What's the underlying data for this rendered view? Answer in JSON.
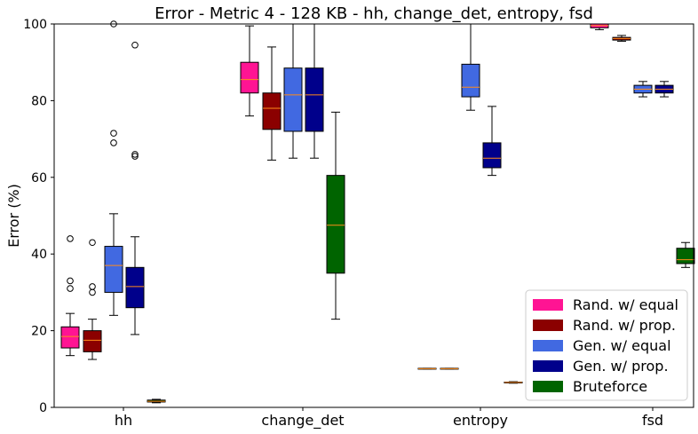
{
  "chart_data": {
    "type": "box",
    "title": "Error - Metric 4 - 128 KB - hh, change_det, entropy, fsd",
    "ylabel": "Error (%)",
    "xlabel": "",
    "ylim": [
      0,
      100
    ],
    "yticks": [
      0,
      20,
      40,
      60,
      80,
      100
    ],
    "categories": [
      "hh",
      "change_det",
      "entropy",
      "fsd"
    ],
    "legend_position": "lower-right",
    "grid": false,
    "median_color": "#ff8c1a",
    "series": [
      {
        "name": "Rand. w/ equal",
        "color": "#ff1493",
        "boxes": [
          {
            "whislo": 13.5,
            "q1": 15.5,
            "med": 18.5,
            "q3": 21,
            "whishi": 24.5,
            "fliers": [
              31,
              33,
              44
            ]
          },
          {
            "whislo": 76,
            "q1": 82,
            "med": 85.5,
            "q3": 90,
            "whishi": 99.5,
            "fliers": []
          },
          {
            "whislo": 10,
            "q1": 10,
            "med": 10.1,
            "q3": 10.2,
            "whishi": 10.2,
            "fliers": []
          },
          {
            "whislo": 98.5,
            "q1": 99,
            "med": 99.6,
            "q3": 100,
            "whishi": 100,
            "fliers": []
          }
        ]
      },
      {
        "name": "Rand. w/ prop.",
        "color": "#8b0000",
        "boxes": [
          {
            "whislo": 12.5,
            "q1": 14.5,
            "med": 17.5,
            "q3": 20,
            "whishi": 23,
            "fliers": [
              30,
              31.5,
              43
            ]
          },
          {
            "whislo": 64.5,
            "q1": 72.5,
            "med": 78,
            "q3": 82,
            "whishi": 94,
            "fliers": []
          },
          {
            "whislo": 10,
            "q1": 10,
            "med": 10.1,
            "q3": 10.2,
            "whishi": 10.2,
            "fliers": []
          },
          {
            "whislo": 95.5,
            "q1": 95.8,
            "med": 96.2,
            "q3": 96.5,
            "whishi": 97,
            "fliers": []
          }
        ]
      },
      {
        "name": "Gen. w/ equal",
        "color": "#4169e1",
        "boxes": [
          {
            "whislo": 24,
            "q1": 30,
            "med": 37,
            "q3": 42,
            "whishi": 50.5,
            "fliers": [
              69,
              71.5,
              100
            ]
          },
          {
            "whislo": 65,
            "q1": 72,
            "med": 81.5,
            "q3": 88.5,
            "whishi": 100,
            "fliers": []
          },
          {
            "whislo": 77.5,
            "q1": 81,
            "med": 83.5,
            "q3": 89.5,
            "whishi": 100,
            "fliers": []
          },
          {
            "whislo": 81,
            "q1": 82,
            "med": 83,
            "q3": 84,
            "whishi": 85,
            "fliers": []
          }
        ]
      },
      {
        "name": "Gen. w/ prop.",
        "color": "#00008b",
        "boxes": [
          {
            "whislo": 19,
            "q1": 26,
            "med": 31.5,
            "q3": 36.5,
            "whishi": 44.5,
            "fliers": [
              65.5,
              66,
              94.5
            ]
          },
          {
            "whislo": 65,
            "q1": 72,
            "med": 81.5,
            "q3": 88.5,
            "whishi": 100,
            "fliers": []
          },
          {
            "whislo": 60.5,
            "q1": 62.5,
            "med": 65,
            "q3": 69,
            "whishi": 78.5,
            "fliers": []
          },
          {
            "whislo": 81,
            "q1": 82,
            "med": 83,
            "q3": 84,
            "whishi": 85,
            "fliers": []
          }
        ]
      },
      {
        "name": "Bruteforce",
        "color": "#006400",
        "boxes": [
          {
            "whislo": 1.2,
            "q1": 1.4,
            "med": 1.6,
            "q3": 1.9,
            "whishi": 2.1,
            "fliers": []
          },
          {
            "whislo": 23,
            "q1": 35,
            "med": 47.5,
            "q3": 60.5,
            "whishi": 77,
            "fliers": []
          },
          {
            "whislo": 6.3,
            "q1": 6.4,
            "med": 6.5,
            "q3": 6.6,
            "whishi": 6.7,
            "fliers": []
          },
          {
            "whislo": 36.5,
            "q1": 37.5,
            "med": 38.5,
            "q3": 41.5,
            "whishi": 43,
            "fliers": []
          }
        ]
      }
    ]
  }
}
